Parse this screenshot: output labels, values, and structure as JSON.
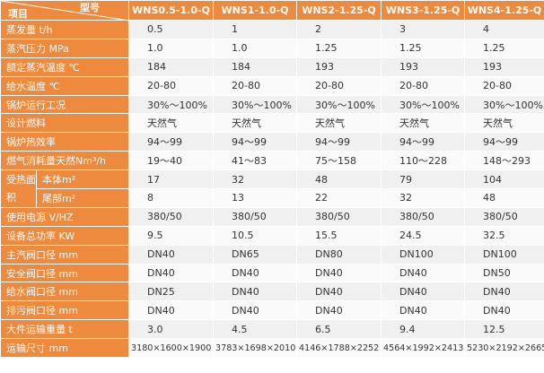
{
  "header": {
    "item": "项目",
    "model": "型号",
    "models": [
      "WNS0.5-1.0-Q",
      "WNS1-1.0-Q",
      "WNS2-1.25-Q",
      "WNS3-1.25-Q",
      "WNS4-1.25-Q"
    ]
  },
  "rows": [
    {
      "label": "蒸发量 t/h",
      "values": [
        "0.5",
        "1",
        "2",
        "3",
        "4"
      ]
    },
    {
      "label": "蒸汽压力 MPa",
      "values": [
        "1.0",
        "1.0",
        "1.25",
        "1.25",
        "1.25"
      ]
    },
    {
      "label": "额定蒸汽温度 ℃",
      "values": [
        "184",
        "184",
        "193",
        "193",
        "193"
      ]
    },
    {
      "label": "给水温度 ℃",
      "values": [
        "20-80",
        "20-80",
        "20-80",
        "20-80",
        "20-80"
      ]
    },
    {
      "label": "锅炉运行工况",
      "values": [
        "30%～100%",
        "30%～100%",
        "30%～100%",
        "30%～100%",
        "30%～100%"
      ]
    },
    {
      "label": "设计燃料",
      "values": [
        "天然气",
        "天然气",
        "天然气",
        "天然气",
        "天然气"
      ]
    },
    {
      "label": "锅炉热效率",
      "values": [
        "94～99",
        "94～99",
        "94～99",
        "94～99",
        "94～99"
      ]
    },
    {
      "label": "燃气消耗量天然Nm³/h",
      "values": [
        "19～40",
        "41～83",
        "75～158",
        "110～228",
        "148～293"
      ]
    },
    {
      "label": "受热面积",
      "subrows": [
        {
          "label": "本体m²",
          "values": [
            "17",
            "32",
            "48",
            "79",
            "104"
          ]
        },
        {
          "label": "尾部m²",
          "values": [
            "8",
            "13",
            "22",
            "32",
            "48"
          ]
        }
      ]
    },
    {
      "label": "使用电源 V/HZ",
      "values": [
        "380/50",
        "380/50",
        "380/50",
        "380/50",
        "380/50"
      ]
    },
    {
      "label": "设备总功率 KW",
      "values": [
        "9.5",
        "10.5",
        "15.5",
        "24.5",
        "32.5"
      ]
    },
    {
      "label": "主汽阀口径 mm",
      "values": [
        "DN40",
        "DN65",
        "DN80",
        "DN100",
        "DN100"
      ]
    },
    {
      "label": "安全阀口径 mm",
      "values": [
        "DN40",
        "DN40",
        "DN40",
        "DN40",
        "DN50"
      ]
    },
    {
      "label": "给水阀口径 mm",
      "values": [
        "DN25",
        "DN40",
        "DN40",
        "DN40",
        "DN40"
      ]
    },
    {
      "label": "排污阀口径 mm",
      "values": [
        "DN40",
        "DN40",
        "DN40",
        "DN40",
        "DN40"
      ]
    },
    {
      "label": "大件运输重量 t",
      "values": [
        "3.0",
        "4.5",
        "6.5",
        "9.4",
        "12.5"
      ]
    },
    {
      "label": "运输尺寸 mm",
      "values": [
        "3180×1600×1900",
        "3783×1698×2010",
        "4146×1788×2252",
        "4564×1992×2413",
        "5230×2192×2665"
      ]
    }
  ]
}
